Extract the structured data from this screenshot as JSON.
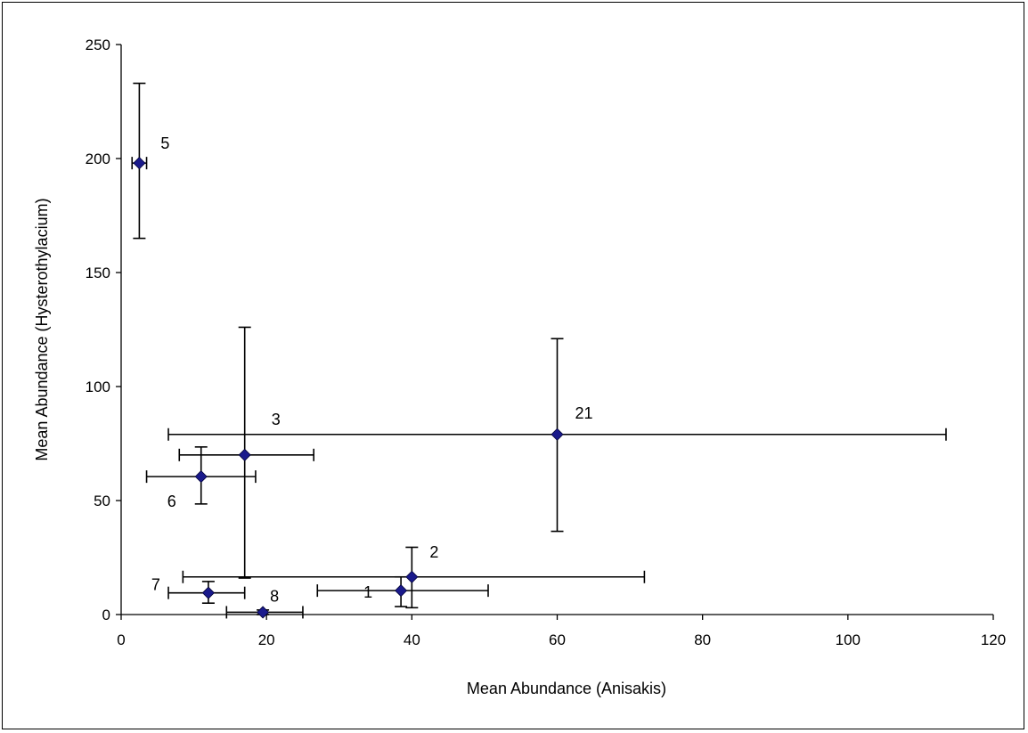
{
  "chart_data": {
    "type": "scatter",
    "title": "",
    "xlabel": "Mean Abundance (Anisakis)",
    "ylabel": "Mean Abundance (Hysterothylacium)",
    "xlim": [
      0,
      120
    ],
    "ylim": [
      0,
      250
    ],
    "xticks": [
      0,
      20,
      40,
      60,
      80,
      100,
      120
    ],
    "yticks": [
      0,
      50,
      100,
      150,
      200,
      250
    ],
    "grid": false,
    "legend": "none",
    "marker": "diamond",
    "marker_color": "#1a1a8c",
    "points": [
      {
        "label": "5",
        "x": 2.5,
        "y": 198,
        "x_err": [
          1.5,
          3.5
        ],
        "y_err": [
          165,
          233
        ]
      },
      {
        "label": "3",
        "x": 17,
        "y": 70,
        "x_err": [
          8,
          26.5
        ],
        "y_err": [
          16,
          126
        ]
      },
      {
        "label": "6",
        "x": 11,
        "y": 60.5,
        "x_err": [
          3.5,
          18.5
        ],
        "y_err": [
          48.5,
          73.5
        ]
      },
      {
        "label": "21",
        "x": 60,
        "y": 79,
        "x_err": [
          6.5,
          113.5
        ],
        "y_err": [
          36.5,
          121
        ]
      },
      {
        "label": "2",
        "x": 40,
        "y": 16.5,
        "x_err": [
          8.5,
          72
        ],
        "y_err": [
          3,
          29.5
        ]
      },
      {
        "label": "1",
        "x": 38.5,
        "y": 10.5,
        "x_err": [
          27,
          50.5
        ],
        "y_err": [
          3.5,
          16.5
        ]
      },
      {
        "label": "7",
        "x": 12,
        "y": 9.5,
        "x_err": [
          6.5,
          17
        ],
        "y_err": [
          5,
          14.5
        ]
      },
      {
        "label": "8",
        "x": 19.5,
        "y": 1,
        "x_err": [
          14.5,
          25
        ],
        "y_err": [
          0,
          2
        ]
      }
    ]
  }
}
